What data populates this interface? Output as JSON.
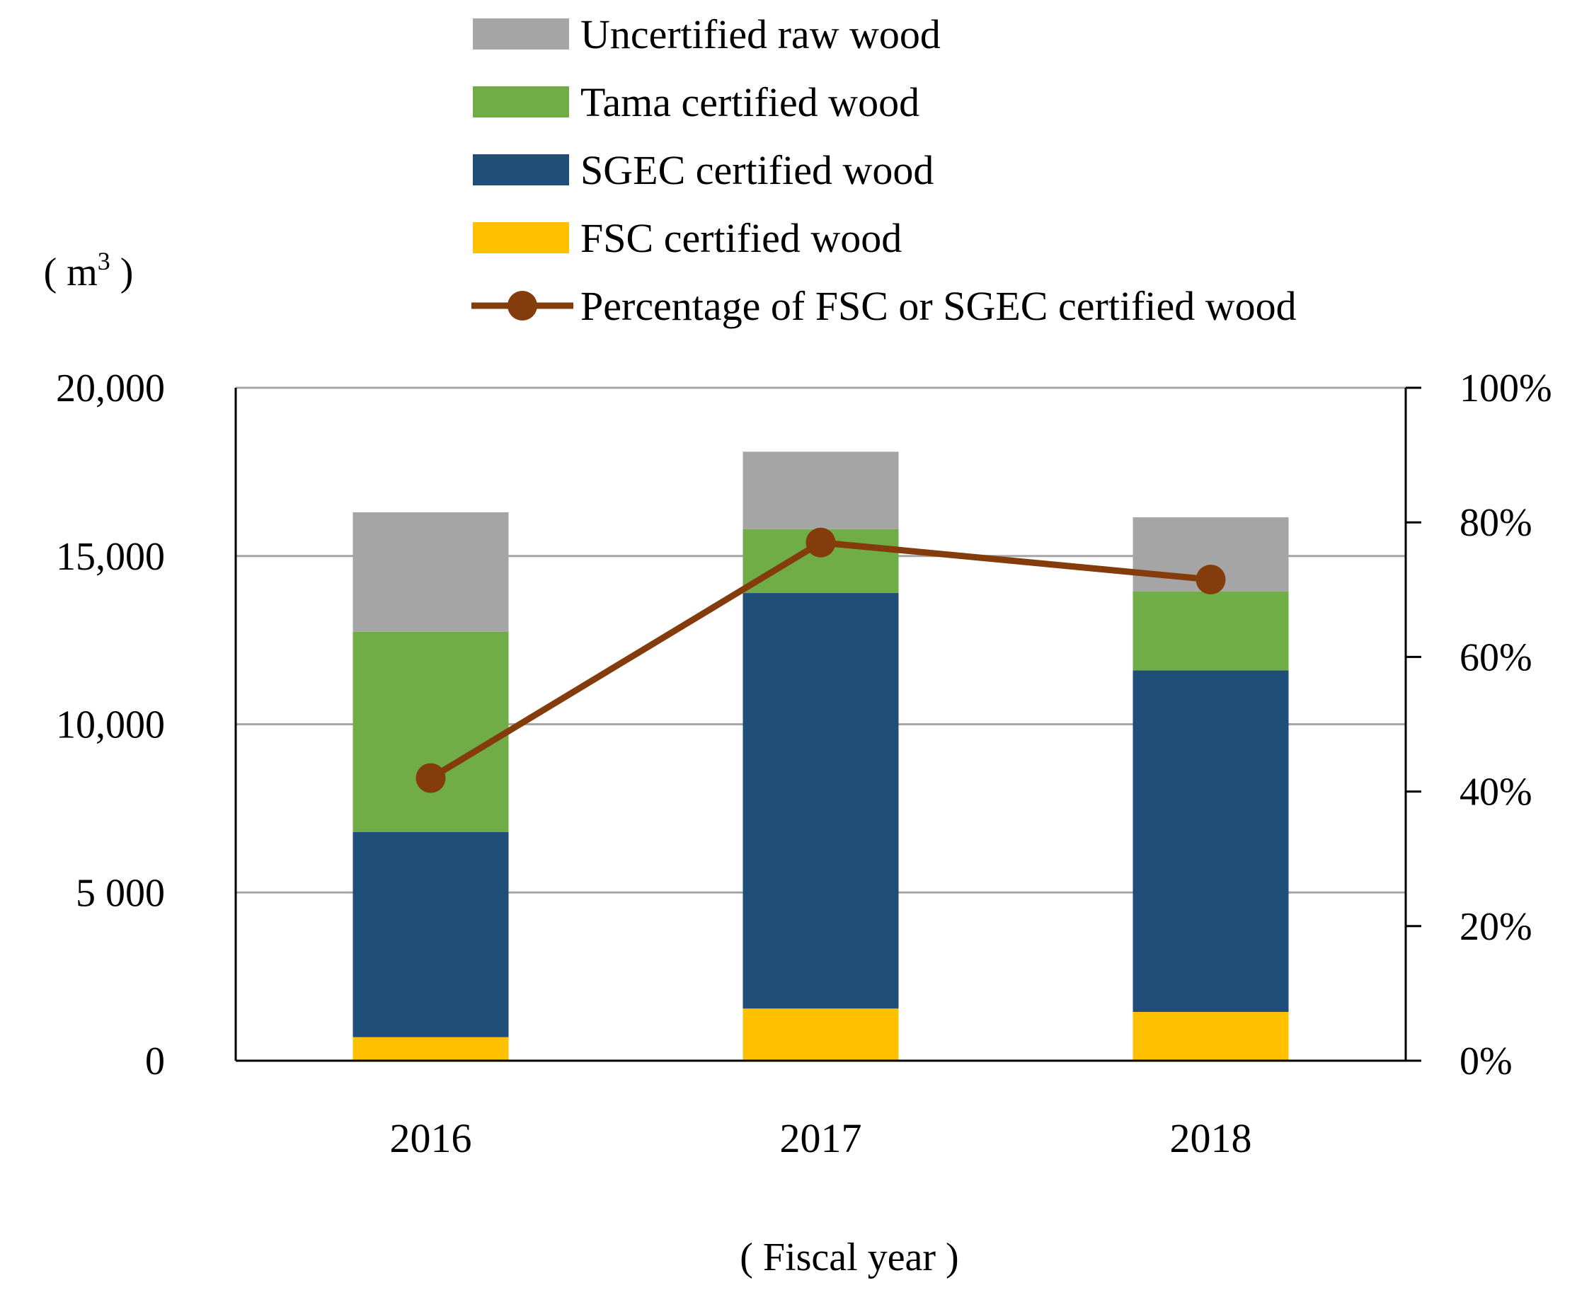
{
  "chart_data": {
    "type": "bar",
    "stacked": true,
    "categories": [
      "2016",
      "2017",
      "2018"
    ],
    "xlabel": "( Fiscal year )",
    "ylabel": "( m³ )",
    "ylabel_parts": {
      "open": "(",
      "unit": "m",
      "exponent": "3",
      "close": ")"
    },
    "ylim": [
      0,
      20000
    ],
    "y_ticks": [
      {
        "value": 0,
        "label": "0"
      },
      {
        "value": 5000,
        "label": "5 000"
      },
      {
        "value": 10000,
        "label": "10,000"
      },
      {
        "value": 15000,
        "label": "15,000"
      },
      {
        "value": 20000,
        "label": "20,000"
      }
    ],
    "y2lim": [
      0,
      100
    ],
    "y2_ticks": [
      {
        "value": 0,
        "label": "0%"
      },
      {
        "value": 20,
        "label": "20%"
      },
      {
        "value": 40,
        "label": "40%"
      },
      {
        "value": 60,
        "label": "60%"
      },
      {
        "value": 80,
        "label": "80%"
      },
      {
        "value": 100,
        "label": "100%"
      }
    ],
    "grid": true,
    "legend_position": "top",
    "series": [
      {
        "name": "FSC certified wood",
        "color": "#FFC000",
        "values": [
          700,
          1550,
          1450
        ]
      },
      {
        "name": "SGEC certified wood",
        "color": "#1F4E79",
        "values": [
          6100,
          12350,
          10150
        ]
      },
      {
        "name": "Tama certified wood",
        "color": "#70AD47",
        "values": [
          5950,
          1900,
          2350
        ]
      },
      {
        "name": "Uncertified raw wood",
        "color": "#A5A5A5",
        "values": [
          3550,
          2300,
          2200
        ]
      }
    ],
    "line_series": {
      "name": "Percentage of FSC or SGEC certified wood",
      "color": "#843C0C",
      "axis": "right",
      "values": [
        42,
        77,
        71.5
      ]
    },
    "legend_order": [
      "Uncertified raw wood",
      "Tama certified wood",
      "SGEC certified wood",
      "FSC certified wood",
      "Percentage of FSC or SGEC certified wood"
    ]
  }
}
